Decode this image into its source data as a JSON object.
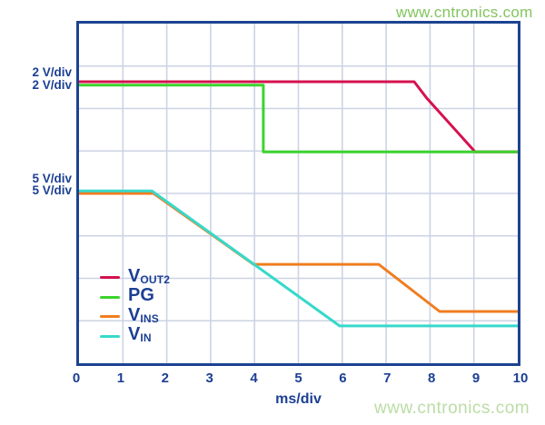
{
  "watermarks": {
    "top": "www.cntronics.com",
    "bottom": "www.cntronics.com"
  },
  "scale_labels": [
    "2 V/div",
    "2 V/div",
    "5 V/div",
    "5 V/div"
  ],
  "axis": {
    "x_ticks": [
      "0",
      "1",
      "2",
      "3",
      "4",
      "5",
      "6",
      "7",
      "8",
      "9",
      "10"
    ],
    "x_label": "ms/div"
  },
  "legend": {
    "items": [
      {
        "main": "V",
        "sub": "OUT2"
      },
      {
        "main": "PG",
        "sub": ""
      },
      {
        "main": "V",
        "sub": "INS"
      },
      {
        "main": "V",
        "sub": "IN"
      }
    ]
  },
  "colors": {
    "axis_text": "#1c3f94",
    "plot_border": "#1d4390",
    "grid": "#ccd3e5",
    "vout2": "#d5114e",
    "pg": "#3cd42d",
    "vins": "#f07d20",
    "vin": "#36d9ca",
    "watermark_top": "#82c55e",
    "watermark_bottom": "#bcdca6"
  },
  "chart_data": {
    "type": "line",
    "title": "",
    "xlabel": "ms/div",
    "ylabel": "",
    "x_range": [
      0,
      10
    ],
    "x_divisions": 10,
    "y_divisions": 8,
    "grid": true,
    "legend_position": "inside-lower-left",
    "y_units": "screen divisions from top; per-trace vertical scale given by scale field",
    "series": [
      {
        "name": "V_OUT2",
        "scale": "2 V/div",
        "color": "#d5114e",
        "points": [
          [
            0,
            1.37
          ],
          [
            7.64,
            1.37
          ],
          [
            7.93,
            1.76
          ],
          [
            9.03,
            3.02
          ],
          [
            10,
            3.02
          ]
        ]
      },
      {
        "name": "PG",
        "scale": "2 V/div",
        "color": "#3cd42d",
        "points": [
          [
            0,
            1.45
          ],
          [
            4.2,
            1.45
          ],
          [
            4.2,
            3.02
          ],
          [
            10,
            3.02
          ]
        ]
      },
      {
        "name": "V_INS",
        "scale": "5 V/div",
        "color": "#f07d20",
        "points": [
          [
            0,
            4.0
          ],
          [
            1.7,
            4.0
          ],
          [
            3.98,
            5.67
          ],
          [
            6.83,
            5.67
          ],
          [
            8.22,
            6.78
          ],
          [
            10,
            6.78
          ]
        ]
      },
      {
        "name": "V_IN",
        "scale": "5 V/div",
        "color": "#36d9ca",
        "points": [
          [
            0,
            3.94
          ],
          [
            1.66,
            3.94
          ],
          [
            5.94,
            7.12
          ],
          [
            10,
            7.12
          ]
        ]
      }
    ]
  }
}
